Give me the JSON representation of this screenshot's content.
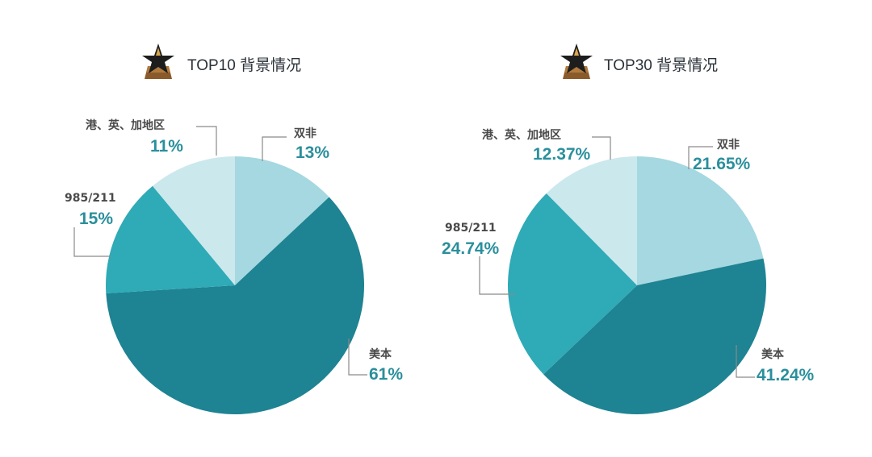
{
  "colors": {
    "shuangfei": "#a5d8e0",
    "meiben": "#1e8392",
    "c985_211": "#2faab7",
    "overseas": "#cbe8ed",
    "label_accent": "#2a8f9c",
    "text_dark": "#2b3238"
  },
  "icons": {
    "title_icon": "star-trophy-icon"
  },
  "chart_data": [
    {
      "type": "pie",
      "title": "TOP10 背景情况",
      "slices": [
        {
          "name": "双非",
          "value": 13,
          "label": "13%",
          "color": "#a5d8e0"
        },
        {
          "name": "美本",
          "value": 61,
          "label": "61%",
          "color": "#1e8392"
        },
        {
          "name": "985/211",
          "value": 15,
          "label": "15%",
          "color": "#2faab7"
        },
        {
          "name": "港、英、加地区",
          "value": 11,
          "label": "11%",
          "color": "#cbe8ed"
        }
      ]
    },
    {
      "type": "pie",
      "title": "TOP30 背景情况",
      "slices": [
        {
          "name": "双非",
          "value": 21.65,
          "label": "21.65%",
          "color": "#a5d8e0"
        },
        {
          "name": "美本",
          "value": 41.24,
          "label": "41.24%",
          "color": "#1e8392"
        },
        {
          "name": "985/211",
          "value": 24.74,
          "label": "24.74%",
          "color": "#2faab7"
        },
        {
          "name": "港、英、加地区",
          "value": 12.37,
          "label": "12.37%",
          "color": "#cbe8ed"
        }
      ]
    }
  ]
}
